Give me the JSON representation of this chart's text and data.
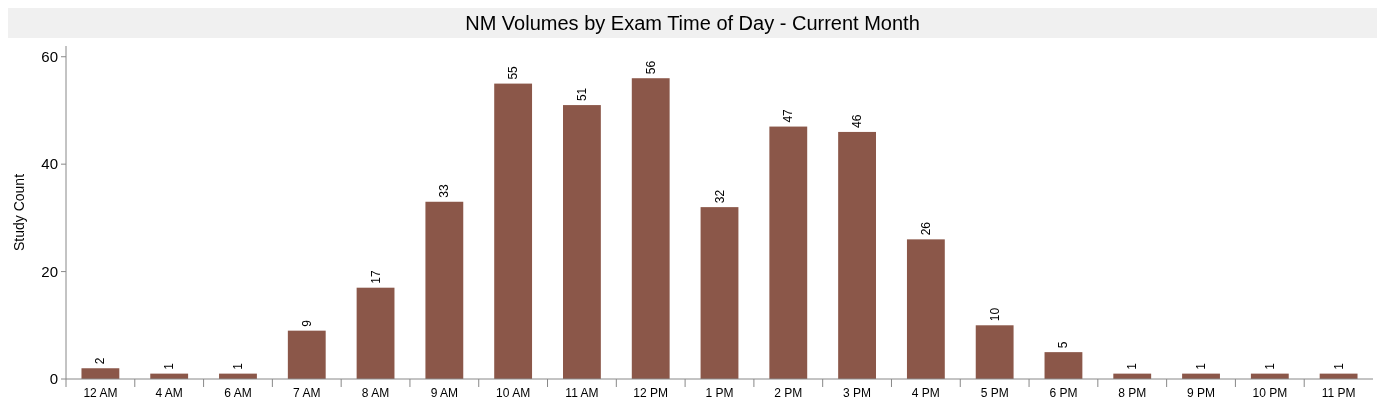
{
  "chart_data": {
    "type": "bar",
    "title": "NM Volumes by Exam Time of Day - Current Month",
    "ylabel": "Study Count",
    "categories": [
      "12 AM",
      "4 AM",
      "6 AM",
      "7 AM",
      "8 AM",
      "9 AM",
      "10 AM",
      "11 AM",
      "12 PM",
      "1 PM",
      "2 PM",
      "3 PM",
      "4 PM",
      "5 PM",
      "6 PM",
      "8 PM",
      "9 PM",
      "10 PM",
      "11 PM"
    ],
    "values": [
      2,
      1,
      1,
      9,
      17,
      33,
      55,
      51,
      56,
      32,
      47,
      46,
      26,
      10,
      5,
      1,
      1,
      1,
      1
    ],
    "color": "#8b5749",
    "ylim": [
      0,
      62
    ],
    "yticks": [
      0,
      20,
      40,
      60
    ],
    "data_labels": true,
    "grid": false
  }
}
